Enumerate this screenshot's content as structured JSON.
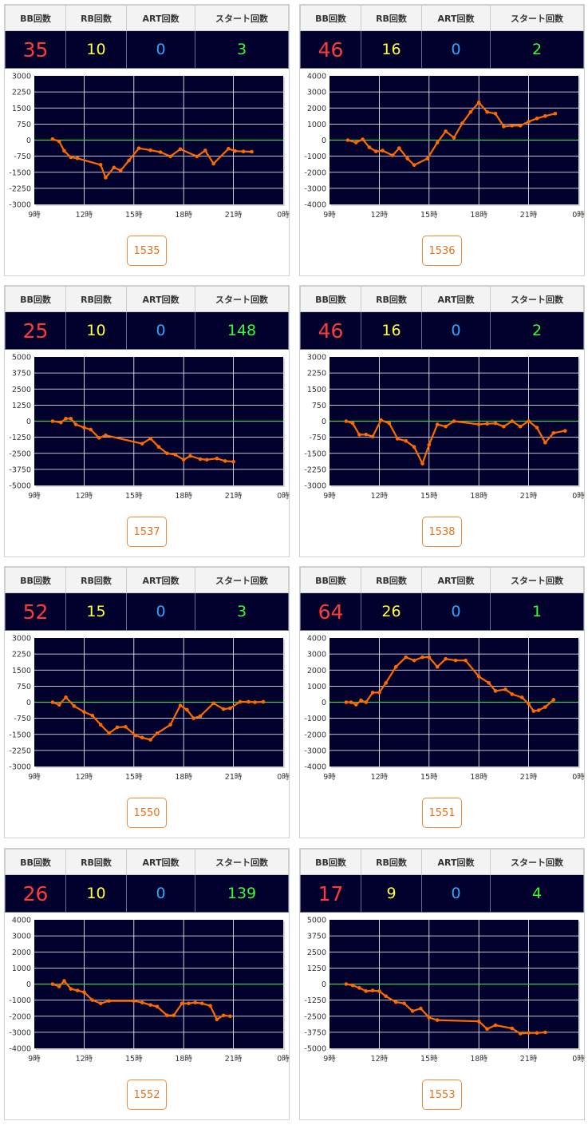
{
  "headers": {
    "bb": "BB回数",
    "rb": "RB回数",
    "art": "ART回数",
    "start": "スタート回数"
  },
  "x_ticks": [
    "9時",
    "12時",
    "15時",
    "18時",
    "21時",
    "0時"
  ],
  "colors": {
    "plot_bg": "#02012e",
    "line": "#ff6a00",
    "zero": "#44cc44",
    "grid": "#ffffff",
    "bb": "#ff3a3a",
    "rb": "#ffff33",
    "art": "#29a9ff",
    "start": "#33ff33",
    "button": "#e8731a"
  },
  "machines": [
    {
      "id": "1535",
      "bb": "35",
      "rb": "10",
      "art": "0",
      "start": "3",
      "chart_data": {
        "type": "line",
        "ylim": [
          -3000,
          3000
        ],
        "yticks": [
          3000,
          2250,
          1500,
          750,
          0,
          -750,
          -1500,
          -2250,
          -3000
        ],
        "xlim": [
          9,
          24
        ],
        "x": [
          10.1,
          10.5,
          10.8,
          11.2,
          11.6,
          13.0,
          13.3,
          13.8,
          14.2,
          14.7,
          15.3,
          16.0,
          16.6,
          17.2,
          17.8,
          18.8,
          19.3,
          19.8,
          20.7,
          21.1,
          21.6,
          22.1
        ],
        "y": [
          50,
          -60,
          -500,
          -800,
          -850,
          -1150,
          -1750,
          -1280,
          -1420,
          -950,
          -380,
          -470,
          -560,
          -760,
          -420,
          -760,
          -480,
          -1100,
          -400,
          -510,
          -530,
          -540
        ]
      }
    },
    {
      "id": "1536",
      "bb": "46",
      "rb": "16",
      "art": "0",
      "start": "2",
      "chart_data": {
        "type": "line",
        "ylim": [
          -4000,
          4000
        ],
        "yticks": [
          4000,
          3000,
          2000,
          1000,
          0,
          -1000,
          -2000,
          -3000,
          -4000
        ],
        "xlim": [
          9,
          24
        ],
        "x": [
          10.1,
          10.6,
          11.0,
          11.4,
          11.8,
          12.2,
          12.8,
          13.2,
          13.7,
          14.1,
          14.9,
          15.5,
          16.0,
          16.5,
          17.0,
          17.5,
          18.0,
          18.5,
          19.0,
          19.5,
          20.0,
          20.5,
          21.0,
          21.5,
          22.0,
          22.6
        ],
        "y": [
          0,
          -150,
          50,
          -450,
          -700,
          -650,
          -950,
          -500,
          -1150,
          -1550,
          -1150,
          -150,
          550,
          150,
          1050,
          1750,
          2350,
          1750,
          1650,
          850,
          900,
          900,
          1150,
          1350,
          1500,
          1650
        ]
      }
    },
    {
      "id": "1537",
      "bb": "25",
      "rb": "10",
      "art": "0",
      "start": "148",
      "chart_data": {
        "type": "line",
        "ylim": [
          -5000,
          5000
        ],
        "yticks": [
          5000,
          3750,
          2500,
          1250,
          0,
          -1250,
          -2500,
          -3750,
          -5000
        ],
        "xlim": [
          9,
          24
        ],
        "x": [
          10.1,
          10.6,
          10.9,
          11.2,
          11.5,
          12.0,
          12.4,
          12.9,
          13.3,
          15.5,
          16.0,
          16.5,
          17.0,
          17.5,
          18.0,
          18.4,
          19.0,
          19.4,
          20.0,
          20.5,
          21.0
        ],
        "y": [
          0,
          -100,
          200,
          200,
          -250,
          -500,
          -650,
          -1300,
          -1100,
          -1750,
          -1350,
          -2000,
          -2500,
          -2600,
          -3000,
          -2700,
          -2950,
          -3000,
          -2900,
          -3100,
          -3150
        ]
      }
    },
    {
      "id": "1538",
      "bb": "46",
      "rb": "16",
      "art": "0",
      "start": "2",
      "chart_data": {
        "type": "line",
        "ylim": [
          -3000,
          3000
        ],
        "yticks": [
          3000,
          2250,
          1500,
          750,
          0,
          -750,
          -1500,
          -2250,
          -3000
        ],
        "xlim": [
          9,
          24
        ],
        "x": [
          10.0,
          10.4,
          10.8,
          11.2,
          11.6,
          12.1,
          12.6,
          13.1,
          13.6,
          14.1,
          14.6,
          15.0,
          15.5,
          16.0,
          16.5,
          18.0,
          18.5,
          19.0,
          19.5,
          20.0,
          20.5,
          21.0,
          21.5,
          22.0,
          22.5,
          23.2
        ],
        "y": [
          0,
          -100,
          -630,
          -620,
          -720,
          50,
          -100,
          -820,
          -920,
          -1200,
          -1980,
          -1100,
          -150,
          -250,
          0,
          -150,
          -120,
          -100,
          -250,
          0,
          -250,
          0,
          -300,
          -1000,
          -550,
          -450
        ]
      }
    },
    {
      "id": "1550",
      "bb": "52",
      "rb": "15",
      "art": "0",
      "start": "3",
      "chart_data": {
        "type": "line",
        "ylim": [
          -3000,
          3000
        ],
        "yticks": [
          3000,
          2250,
          1500,
          750,
          0,
          -750,
          -1500,
          -2250,
          -3000
        ],
        "xlim": [
          9,
          24
        ],
        "x": [
          10.1,
          10.5,
          10.9,
          11.4,
          12.0,
          12.5,
          13.0,
          13.5,
          14.0,
          14.5,
          15.1,
          15.5,
          16.0,
          16.4,
          17.2,
          17.8,
          18.2,
          18.6,
          19.0,
          19.8,
          20.4,
          20.8,
          21.4,
          21.9,
          22.3,
          22.8
        ],
        "y": [
          0,
          -120,
          230,
          -180,
          -450,
          -620,
          -1050,
          -1450,
          -1170,
          -1150,
          -1550,
          -1650,
          -1750,
          -1450,
          -1050,
          -150,
          -350,
          -750,
          -650,
          -50,
          -320,
          -280,
          20,
          20,
          0,
          20
        ]
      }
    },
    {
      "id": "1551",
      "bb": "64",
      "rb": "26",
      "art": "0",
      "start": "1",
      "chart_data": {
        "type": "line",
        "ylim": [
          -4000,
          4000
        ],
        "yticks": [
          4000,
          3000,
          2000,
          1000,
          0,
          -1000,
          -2000,
          -3000,
          -4000
        ],
        "xlim": [
          9,
          24
        ],
        "x": [
          10.0,
          10.3,
          10.6,
          10.9,
          11.2,
          11.6,
          12.0,
          12.4,
          13.0,
          13.6,
          14.1,
          14.6,
          15.0,
          15.5,
          16.0,
          16.6,
          17.2,
          18.0,
          18.6,
          19.0,
          19.6,
          20.0,
          20.6,
          21.0,
          21.3,
          21.6,
          22.0,
          22.5
        ],
        "y": [
          0,
          0,
          -150,
          120,
          0,
          600,
          600,
          1200,
          2200,
          2800,
          2600,
          2800,
          2800,
          2200,
          2700,
          2600,
          2600,
          1600,
          1200,
          700,
          800,
          500,
          300,
          -100,
          -550,
          -500,
          -300,
          150
        ]
      }
    },
    {
      "id": "1552",
      "bb": "26",
      "rb": "10",
      "art": "0",
      "start": "139",
      "chart_data": {
        "type": "line",
        "ylim": [
          -4000,
          4000
        ],
        "yticks": [
          4000,
          3000,
          2000,
          1000,
          0,
          -1000,
          -2000,
          -3000,
          -4000
        ],
        "xlim": [
          9,
          24
        ],
        "x": [
          10.1,
          10.5,
          10.8,
          11.2,
          11.6,
          12.0,
          12.5,
          13.0,
          13.5,
          15.0,
          15.5,
          16.0,
          16.4,
          17.0,
          17.4,
          17.9,
          18.3,
          18.7,
          19.1,
          19.6,
          20.0,
          20.4,
          20.8
        ],
        "y": [
          0,
          -150,
          200,
          -300,
          -400,
          -500,
          -1000,
          -1200,
          -1050,
          -1050,
          -1150,
          -1300,
          -1400,
          -1950,
          -1950,
          -1200,
          -1200,
          -1150,
          -1200,
          -1350,
          -2200,
          -1950,
          -2000
        ]
      }
    },
    {
      "id": "1553",
      "bb": "17",
      "rb": "9",
      "art": "0",
      "start": "4",
      "chart_data": {
        "type": "line",
        "ylim": [
          -5000,
          5000
        ],
        "yticks": [
          5000,
          3750,
          2500,
          1250,
          0,
          -1250,
          -2500,
          -3750,
          -5000
        ],
        "xlim": [
          9,
          24
        ],
        "x": [
          10.0,
          10.4,
          10.8,
          11.2,
          11.6,
          12.0,
          12.4,
          13.0,
          13.5,
          14.0,
          14.5,
          15.0,
          15.5,
          18.0,
          18.5,
          19.0,
          20.0,
          20.5,
          21.0,
          21.5,
          22.0
        ],
        "y": [
          0,
          -100,
          -300,
          -550,
          -500,
          -550,
          -950,
          -1400,
          -1500,
          -2100,
          -1900,
          -2600,
          -2800,
          -2900,
          -3500,
          -3200,
          -3450,
          -3850,
          -3800,
          -3800,
          -3750
        ]
      }
    }
  ]
}
